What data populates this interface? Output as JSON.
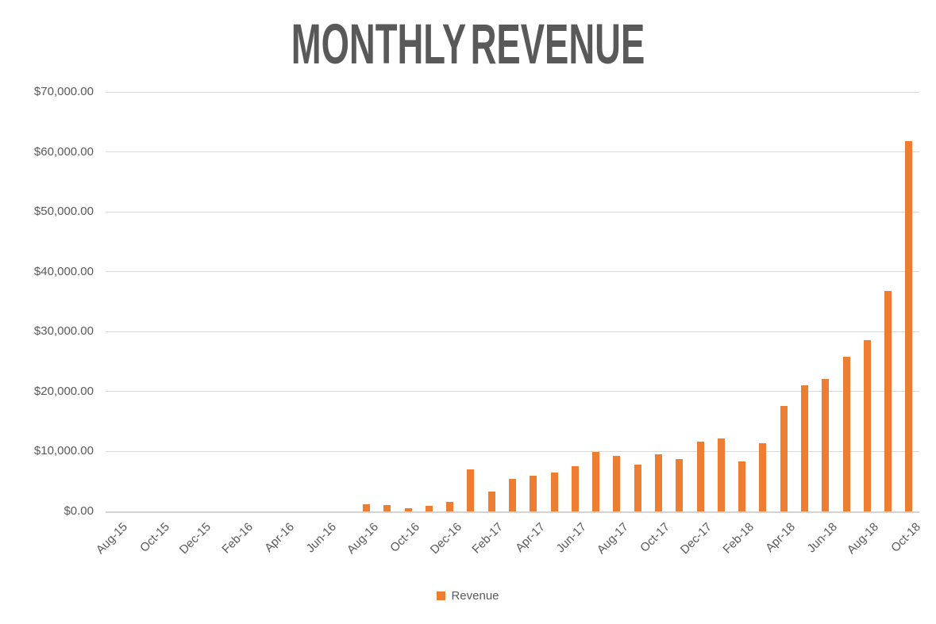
{
  "title": "MONTHLY REVENUE",
  "legend": {
    "label": "Revenue",
    "swatch_color": "#ED7D31"
  },
  "colors": {
    "bar": "#ED7D31",
    "title_text": "#595959",
    "axis_text": "#595959",
    "gridline": "#D9D9D9",
    "background": "#FFFFFF"
  },
  "chart_data": {
    "type": "bar",
    "title": "MONTHLY REVENUE",
    "categories": [
      "Aug-15",
      "Sep-15",
      "Oct-15",
      "Nov-15",
      "Dec-15",
      "Jan-16",
      "Feb-16",
      "Mar-16",
      "Apr-16",
      "May-16",
      "Jun-16",
      "Jul-16",
      "Aug-16",
      "Sep-16",
      "Oct-16",
      "Nov-16",
      "Dec-16",
      "Jan-17",
      "Feb-17",
      "Mar-17",
      "Apr-17",
      "May-17",
      "Jun-17",
      "Jul-17",
      "Aug-17",
      "Sep-17",
      "Oct-17",
      "Nov-17",
      "Dec-17",
      "Jan-18",
      "Feb-18",
      "Mar-18",
      "Apr-18",
      "May-18",
      "Jun-18",
      "Jul-18",
      "Aug-18",
      "Sep-18",
      "Oct-18"
    ],
    "series": [
      {
        "name": "Revenue",
        "values": [
          0,
          0,
          0,
          0,
          0,
          0,
          0,
          0,
          0,
          0,
          0,
          0,
          1200,
          1000,
          600,
          900,
          1600,
          7000,
          3300,
          5400,
          6000,
          6500,
          7600,
          9900,
          9300,
          7800,
          9500,
          8700,
          11600,
          12200,
          8300,
          11400,
          17600,
          21000,
          22100,
          25800,
          28600,
          36800,
          61800
        ]
      }
    ],
    "ylim": [
      0,
      70000
    ],
    "y_tick_interval": 10000,
    "y_tick_labels": [
      "$0.00",
      "$10,000.00",
      "$20,000.00",
      "$30,000.00",
      "$40,000.00",
      "$50,000.00",
      "$60,000.00",
      "$70,000.00"
    ],
    "x_tick_step": 2,
    "x_tick_labels_visible": [
      "Aug-15",
      "Oct-15",
      "Dec-15",
      "Feb-16",
      "Apr-16",
      "Jun-16",
      "Aug-16",
      "Oct-16",
      "Dec-16",
      "Feb-17",
      "Apr-17",
      "Jun-17",
      "Aug-17",
      "Oct-17",
      "Dec-17",
      "Feb-18",
      "Apr-18",
      "Jun-18",
      "Aug-18",
      "Oct-18"
    ],
    "grid": "horizontal",
    "legend_position": "bottom",
    "bar_color": "#ED7D31"
  }
}
